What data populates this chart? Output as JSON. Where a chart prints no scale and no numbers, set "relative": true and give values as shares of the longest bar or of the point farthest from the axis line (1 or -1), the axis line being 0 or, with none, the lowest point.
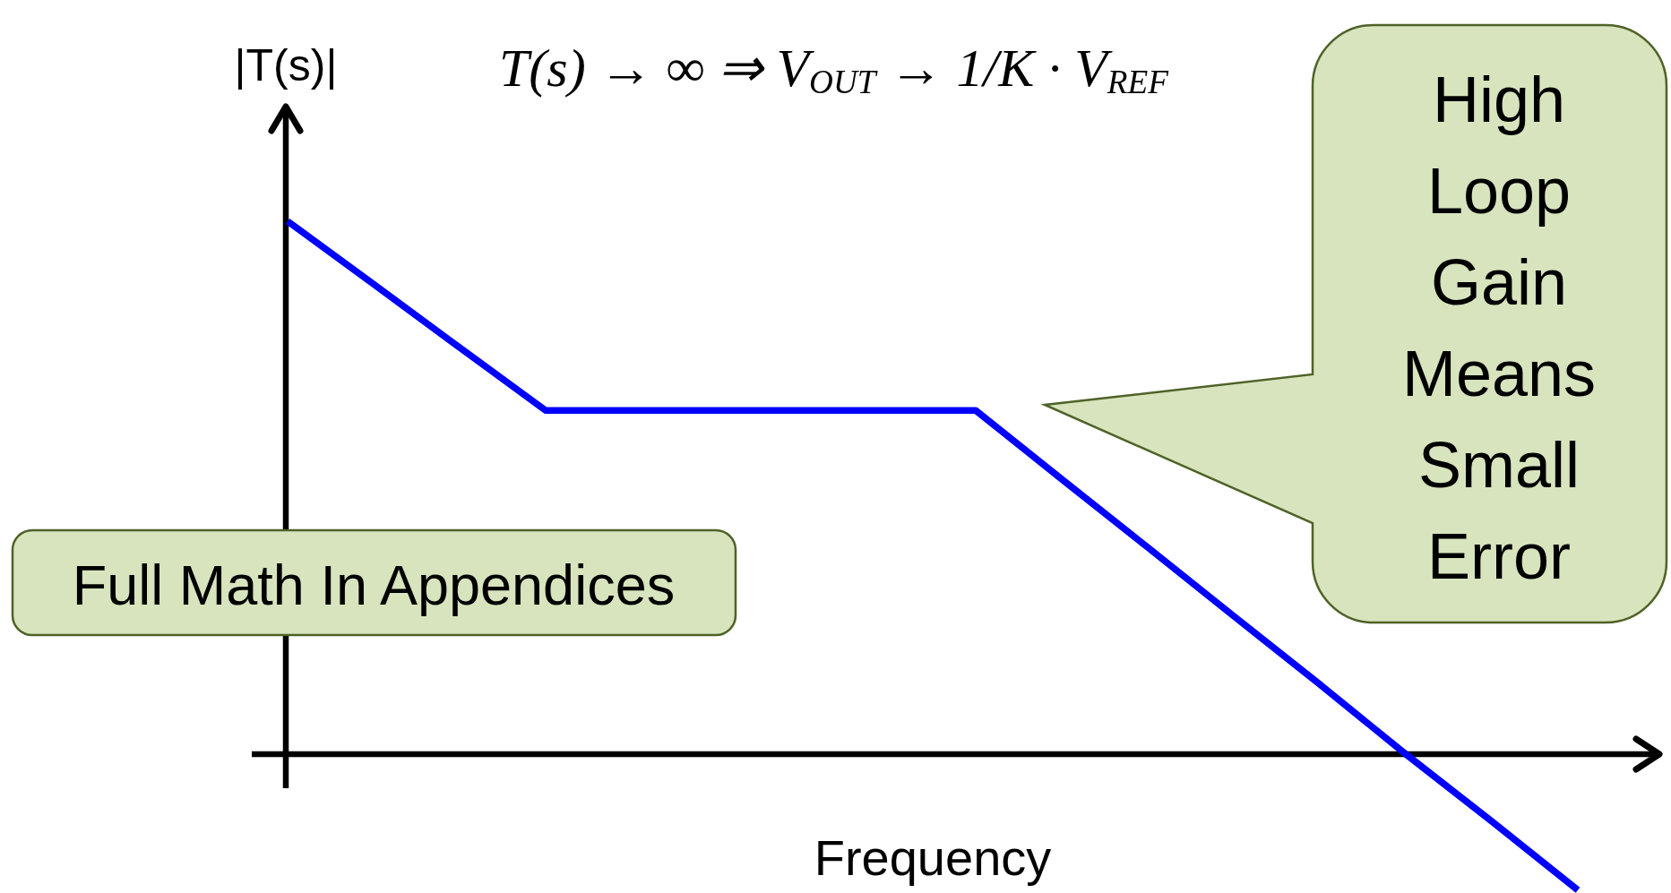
{
  "chart_data": {
    "type": "line",
    "title": "T(s) → ∞ ⇒ V$_{OUT}$ → 1/K · V$_{REF}$",
    "xlabel": "Frequency",
    "ylabel": "|T(s)|",
    "annotations": [
      "Full Math In Appendices",
      "High Loop Gain Means Small Error"
    ],
    "categories": [
      null,
      null,
      null,
      null,
      null,
      null,
      null,
      null,
      null,
      null,
      null,
      null,
      null,
      null,
      null,
      null
    ],
    "relative": true,
    "series": [
      {
        "color": "#0000ff",
        "values": [
          1,
          0.882,
          0.763,
          0.645,
          0.645,
          0.645,
          0.645,
          0.645,
          0.645,
          0.516,
          0.388,
          0.259,
          0.131,
          0,
          -0.126,
          -0.255
        ]
      }
    ]
  }
}
